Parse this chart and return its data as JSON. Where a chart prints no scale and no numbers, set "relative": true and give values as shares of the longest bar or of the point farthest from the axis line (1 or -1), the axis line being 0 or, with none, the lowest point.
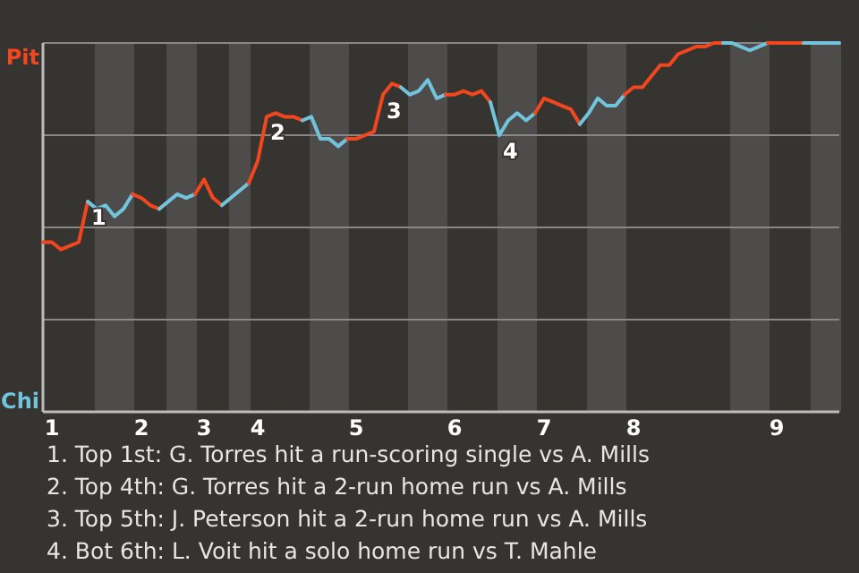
{
  "chart_data": {
    "type": "line",
    "relative": true,
    "categories": [
      null,
      "1",
      null,
      null,
      null,
      null,
      null,
      null,
      null,
      null,
      null,
      "2",
      null,
      null,
      null,
      null,
      null,
      null,
      "3",
      null,
      null,
      null,
      null,
      null,
      "4",
      null,
      null,
      null,
      null,
      null,
      null,
      null,
      null,
      null,
      null,
      "5",
      null,
      null,
      null,
      null,
      null,
      null,
      null,
      null,
      null,
      null,
      "6",
      null,
      null,
      null,
      null,
      null,
      null,
      null,
      null,
      null,
      "7",
      null,
      null,
      null,
      null,
      null,
      null,
      null,
      null,
      null,
      "8",
      null,
      null,
      null,
      null,
      null,
      null,
      null,
      null,
      null,
      null,
      null,
      null,
      null,
      null,
      null,
      "9",
      null,
      null,
      null,
      null,
      null,
      null,
      null
    ],
    "marker": "none",
    "series": [
      {
        "name": "1",
        "color": "#f2461e",
        "values": [
          0.46,
          0.46,
          0.44,
          0.45,
          0.46,
          0.57,
          null,
          null,
          null,
          null,
          null,
          null,
          null,
          null,
          null,
          null,
          null,
          null,
          null,
          null,
          null,
          null,
          null,
          null,
          null,
          null,
          null,
          null,
          null,
          null,
          null,
          null,
          null,
          null,
          null,
          null,
          null,
          null,
          null,
          null,
          null,
          null,
          null,
          null,
          null,
          null,
          null,
          null,
          null,
          null,
          null,
          null,
          null,
          null,
          null,
          null,
          null,
          null,
          null,
          null,
          null,
          null,
          null,
          null,
          null,
          null,
          null,
          null,
          null,
          null,
          null,
          null,
          null,
          null,
          null,
          null,
          null,
          null,
          null,
          null,
          null,
          null,
          null,
          null,
          null,
          null,
          null,
          null,
          null,
          null
        ]
      },
      {
        "color": "#72c4dd",
        "values": [
          null,
          null,
          null,
          null,
          null,
          0.57,
          0.55,
          0.56,
          0.53,
          0.55,
          0.59,
          null,
          null,
          null,
          null,
          null,
          null,
          null,
          null,
          null,
          null,
          null,
          null,
          null,
          null,
          null,
          null,
          null,
          null,
          null,
          null,
          null,
          null,
          null,
          null,
          null,
          null,
          null,
          null,
          null,
          null,
          null,
          null,
          null,
          null,
          null,
          null,
          null,
          null,
          null,
          null,
          null,
          null,
          null,
          null,
          null,
          null,
          null,
          null,
          null,
          null,
          null,
          null,
          null,
          null,
          null,
          null,
          null,
          null,
          null,
          null,
          null,
          null,
          null,
          null,
          null,
          null,
          null,
          null,
          null,
          null,
          null,
          null,
          null,
          null,
          null,
          null,
          null,
          null,
          null
        ]
      },
      {
        "color": "#f2461e",
        "values": [
          null,
          null,
          null,
          null,
          null,
          null,
          null,
          null,
          null,
          null,
          0.59,
          0.58,
          0.56,
          0.55,
          null,
          null,
          null,
          null,
          null,
          null,
          null,
          null,
          null,
          null,
          null,
          null,
          null,
          null,
          null,
          null,
          null,
          null,
          null,
          null,
          null,
          null,
          null,
          null,
          null,
          null,
          null,
          null,
          null,
          null,
          null,
          null,
          null,
          null,
          null,
          null,
          null,
          null,
          null,
          null,
          null,
          null,
          null,
          null,
          null,
          null,
          null,
          null,
          null,
          null,
          null,
          null,
          null,
          null,
          null,
          null,
          null,
          null,
          null,
          null,
          null,
          null,
          null,
          null,
          null,
          null,
          null,
          null,
          null,
          null,
          null,
          null,
          null,
          null,
          null,
          null
        ]
      },
      {
        "color": "#72c4dd",
        "values": [
          null,
          null,
          null,
          null,
          null,
          null,
          null,
          null,
          null,
          null,
          null,
          null,
          null,
          0.55,
          0.57,
          0.59,
          0.58,
          0.59,
          null,
          null,
          null,
          null,
          null,
          null,
          null,
          null,
          null,
          null,
          null,
          null,
          null,
          null,
          null,
          null,
          null,
          null,
          null,
          null,
          null,
          null,
          null,
          null,
          null,
          null,
          null,
          null,
          null,
          null,
          null,
          null,
          null,
          null,
          null,
          null,
          null,
          null,
          null,
          null,
          null,
          null,
          null,
          null,
          null,
          null,
          null,
          null,
          null,
          null,
          null,
          null,
          null,
          null,
          null,
          null,
          null,
          null,
          null,
          null,
          null,
          null,
          null,
          null,
          null,
          null,
          null,
          null,
          null,
          null,
          null,
          null
        ]
      },
      {
        "color": "#f2461e",
        "values": [
          null,
          null,
          null,
          null,
          null,
          null,
          null,
          null,
          null,
          null,
          null,
          null,
          null,
          null,
          null,
          null,
          null,
          0.59,
          0.63,
          0.58,
          0.56,
          null,
          null,
          null,
          null,
          null,
          null,
          null,
          null,
          null,
          null,
          null,
          null,
          null,
          null,
          null,
          null,
          null,
          null,
          null,
          null,
          null,
          null,
          null,
          null,
          null,
          null,
          null,
          null,
          null,
          null,
          null,
          null,
          null,
          null,
          null,
          null,
          null,
          null,
          null,
          null,
          null,
          null,
          null,
          null,
          null,
          null,
          null,
          null,
          null,
          null,
          null,
          null,
          null,
          null,
          null,
          null,
          null,
          null,
          null,
          null,
          null,
          null,
          null,
          null,
          null,
          null,
          null,
          null,
          null
        ]
      },
      {
        "color": "#72c4dd",
        "values": [
          null,
          null,
          null,
          null,
          null,
          null,
          null,
          null,
          null,
          null,
          null,
          null,
          null,
          null,
          null,
          null,
          null,
          null,
          null,
          null,
          0.56,
          0.58,
          0.6,
          0.62,
          null,
          null,
          null,
          null,
          null,
          null,
          null,
          null,
          null,
          null,
          null,
          null,
          null,
          null,
          null,
          null,
          null,
          null,
          null,
          null,
          null,
          null,
          null,
          null,
          null,
          null,
          null,
          null,
          null,
          null,
          null,
          null,
          null,
          null,
          null,
          null,
          null,
          null,
          null,
          null,
          null,
          null,
          null,
          null,
          null,
          null,
          null,
          null,
          null,
          null,
          null,
          null,
          null,
          null,
          null,
          null,
          null,
          null,
          null,
          null,
          null,
          null,
          null,
          null,
          null,
          null
        ]
      },
      {
        "name": "2",
        "color": "#f2461e",
        "values": [
          null,
          null,
          null,
          null,
          null,
          null,
          null,
          null,
          null,
          null,
          null,
          null,
          null,
          null,
          null,
          null,
          null,
          null,
          null,
          null,
          null,
          null,
          null,
          0.62,
          0.68,
          0.8,
          0.81,
          0.8,
          0.8,
          0.79,
          null,
          null,
          null,
          null,
          null,
          null,
          null,
          null,
          null,
          null,
          null,
          null,
          null,
          null,
          null,
          null,
          null,
          null,
          null,
          null,
          null,
          null,
          null,
          null,
          null,
          null,
          null,
          null,
          null,
          null,
          null,
          null,
          null,
          null,
          null,
          null,
          null,
          null,
          null,
          null,
          null,
          null,
          null,
          null,
          null,
          null,
          null,
          null,
          null,
          null,
          null,
          null,
          null,
          null,
          null,
          null,
          null,
          null,
          null,
          null
        ]
      },
      {
        "color": "#72c4dd",
        "values": [
          null,
          null,
          null,
          null,
          null,
          null,
          null,
          null,
          null,
          null,
          null,
          null,
          null,
          null,
          null,
          null,
          null,
          null,
          null,
          null,
          null,
          null,
          null,
          null,
          null,
          null,
          null,
          null,
          null,
          0.79,
          0.8,
          0.74,
          0.74,
          0.72,
          0.74,
          null,
          null,
          null,
          null,
          null,
          null,
          null,
          null,
          null,
          null,
          null,
          null,
          null,
          null,
          null,
          null,
          null,
          null,
          null,
          null,
          null,
          null,
          null,
          null,
          null,
          null,
          null,
          null,
          null,
          null,
          null,
          null,
          null,
          null,
          null,
          null,
          null,
          null,
          null,
          null,
          null,
          null,
          null,
          null,
          null,
          null,
          null,
          null,
          null,
          null,
          null,
          null,
          null,
          null,
          null
        ]
      },
      {
        "name": "3",
        "color": "#f2461e",
        "values": [
          null,
          null,
          null,
          null,
          null,
          null,
          null,
          null,
          null,
          null,
          null,
          null,
          null,
          null,
          null,
          null,
          null,
          null,
          null,
          null,
          null,
          null,
          null,
          null,
          null,
          null,
          null,
          null,
          null,
          null,
          null,
          null,
          null,
          null,
          0.74,
          0.74,
          0.75,
          0.76,
          0.86,
          0.89,
          0.88,
          null,
          null,
          null,
          null,
          null,
          null,
          null,
          null,
          null,
          null,
          null,
          null,
          null,
          null,
          null,
          null,
          null,
          null,
          null,
          null,
          null,
          null,
          null,
          null,
          null,
          null,
          null,
          null,
          null,
          null,
          null,
          null,
          null,
          null,
          null,
          null,
          null,
          null,
          null,
          null,
          null,
          null,
          null,
          null,
          null,
          null,
          null,
          null,
          null
        ]
      },
      {
        "color": "#72c4dd",
        "values": [
          null,
          null,
          null,
          null,
          null,
          null,
          null,
          null,
          null,
          null,
          null,
          null,
          null,
          null,
          null,
          null,
          null,
          null,
          null,
          null,
          null,
          null,
          null,
          null,
          null,
          null,
          null,
          null,
          null,
          null,
          null,
          null,
          null,
          null,
          null,
          null,
          null,
          null,
          null,
          null,
          0.88,
          0.86,
          0.87,
          0.9,
          0.85,
          0.86,
          null,
          null,
          null,
          null,
          null,
          null,
          null,
          null,
          null,
          null,
          null,
          null,
          null,
          null,
          null,
          null,
          null,
          null,
          null,
          null,
          null,
          null,
          null,
          null,
          null,
          null,
          null,
          null,
          null,
          null,
          null,
          null,
          null,
          null,
          null,
          null,
          null,
          null,
          null,
          null,
          null,
          null,
          null,
          null
        ]
      },
      {
        "color": "#f2461e",
        "values": [
          null,
          null,
          null,
          null,
          null,
          null,
          null,
          null,
          null,
          null,
          null,
          null,
          null,
          null,
          null,
          null,
          null,
          null,
          null,
          null,
          null,
          null,
          null,
          null,
          null,
          null,
          null,
          null,
          null,
          null,
          null,
          null,
          null,
          null,
          null,
          null,
          null,
          null,
          null,
          null,
          null,
          null,
          null,
          null,
          null,
          0.86,
          0.86,
          0.87,
          0.86,
          0.87,
          0.84,
          null,
          null,
          null,
          null,
          null,
          null,
          null,
          null,
          null,
          null,
          null,
          null,
          null,
          null,
          null,
          null,
          null,
          null,
          null,
          null,
          null,
          null,
          null,
          null,
          null,
          null,
          null,
          null,
          null,
          null,
          null,
          null,
          null,
          null,
          null,
          null,
          null,
          null,
          null
        ]
      },
      {
        "name": "4",
        "color": "#72c4dd",
        "values": [
          null,
          null,
          null,
          null,
          null,
          null,
          null,
          null,
          null,
          null,
          null,
          null,
          null,
          null,
          null,
          null,
          null,
          null,
          null,
          null,
          null,
          null,
          null,
          null,
          null,
          null,
          null,
          null,
          null,
          null,
          null,
          null,
          null,
          null,
          null,
          null,
          null,
          null,
          null,
          null,
          null,
          null,
          null,
          null,
          null,
          null,
          null,
          null,
          null,
          null,
          0.84,
          0.75,
          0.79,
          0.81,
          0.79,
          0.81,
          null,
          null,
          null,
          null,
          null,
          null,
          null,
          null,
          null,
          null,
          null,
          null,
          null,
          null,
          null,
          null,
          null,
          null,
          null,
          null,
          null,
          null,
          null,
          null,
          null,
          null,
          null,
          null,
          null,
          null,
          null,
          null,
          null,
          null
        ]
      },
      {
        "color": "#f2461e",
        "values": [
          null,
          null,
          null,
          null,
          null,
          null,
          null,
          null,
          null,
          null,
          null,
          null,
          null,
          null,
          null,
          null,
          null,
          null,
          null,
          null,
          null,
          null,
          null,
          null,
          null,
          null,
          null,
          null,
          null,
          null,
          null,
          null,
          null,
          null,
          null,
          null,
          null,
          null,
          null,
          null,
          null,
          null,
          null,
          null,
          null,
          null,
          null,
          null,
          null,
          null,
          null,
          null,
          null,
          null,
          null,
          0.81,
          0.85,
          0.84,
          0.83,
          0.82,
          0.78,
          null,
          null,
          null,
          null,
          null,
          null,
          null,
          null,
          null,
          null,
          null,
          null,
          null,
          null,
          null,
          null,
          null,
          null,
          null,
          null,
          null,
          null,
          null,
          null,
          null,
          null,
          null,
          null,
          null
        ]
      },
      {
        "color": "#72c4dd",
        "values": [
          null,
          null,
          null,
          null,
          null,
          null,
          null,
          null,
          null,
          null,
          null,
          null,
          null,
          null,
          null,
          null,
          null,
          null,
          null,
          null,
          null,
          null,
          null,
          null,
          null,
          null,
          null,
          null,
          null,
          null,
          null,
          null,
          null,
          null,
          null,
          null,
          null,
          null,
          null,
          null,
          null,
          null,
          null,
          null,
          null,
          null,
          null,
          null,
          null,
          null,
          null,
          null,
          null,
          null,
          null,
          null,
          null,
          null,
          null,
          null,
          0.78,
          0.81,
          0.85,
          0.83,
          0.83,
          0.86,
          null,
          null,
          null,
          null,
          null,
          null,
          null,
          null,
          null,
          null,
          null,
          null,
          null,
          null,
          null,
          null,
          null,
          null,
          null,
          null,
          null,
          null,
          null,
          null
        ]
      },
      {
        "color": "#f2461e",
        "values": [
          null,
          null,
          null,
          null,
          null,
          null,
          null,
          null,
          null,
          null,
          null,
          null,
          null,
          null,
          null,
          null,
          null,
          null,
          null,
          null,
          null,
          null,
          null,
          null,
          null,
          null,
          null,
          null,
          null,
          null,
          null,
          null,
          null,
          null,
          null,
          null,
          null,
          null,
          null,
          null,
          null,
          null,
          null,
          null,
          null,
          null,
          null,
          null,
          null,
          null,
          null,
          null,
          null,
          null,
          null,
          null,
          null,
          null,
          null,
          null,
          null,
          null,
          null,
          null,
          null,
          0.86,
          0.88,
          0.88,
          0.91,
          0.94,
          0.94,
          0.97,
          0.98,
          0.99,
          0.99,
          1,
          1,
          null,
          null,
          null,
          null,
          null,
          null,
          null,
          null,
          null,
          null,
          null,
          null,
          null
        ]
      },
      {
        "color": "#72c4dd",
        "values": [
          null,
          null,
          null,
          null,
          null,
          null,
          null,
          null,
          null,
          null,
          null,
          null,
          null,
          null,
          null,
          null,
          null,
          null,
          null,
          null,
          null,
          null,
          null,
          null,
          null,
          null,
          null,
          null,
          null,
          null,
          null,
          null,
          null,
          null,
          null,
          null,
          null,
          null,
          null,
          null,
          null,
          null,
          null,
          null,
          null,
          null,
          null,
          null,
          null,
          null,
          null,
          null,
          null,
          null,
          null,
          null,
          null,
          null,
          null,
          null,
          null,
          null,
          null,
          null,
          null,
          null,
          null,
          null,
          null,
          null,
          null,
          null,
          null,
          null,
          null,
          null,
          1,
          1,
          0.99,
          0.98,
          0.99,
          1,
          null,
          null,
          null,
          null,
          null,
          null,
          null,
          null
        ]
      },
      {
        "color": "#f2461e",
        "values": [
          null,
          null,
          null,
          null,
          null,
          null,
          null,
          null,
          null,
          null,
          null,
          null,
          null,
          null,
          null,
          null,
          null,
          null,
          null,
          null,
          null,
          null,
          null,
          null,
          null,
          null,
          null,
          null,
          null,
          null,
          null,
          null,
          null,
          null,
          null,
          null,
          null,
          null,
          null,
          null,
          null,
          null,
          null,
          null,
          null,
          null,
          null,
          null,
          null,
          null,
          null,
          null,
          null,
          null,
          null,
          null,
          null,
          null,
          null,
          null,
          null,
          null,
          null,
          null,
          null,
          null,
          null,
          null,
          null,
          null,
          null,
          null,
          null,
          null,
          null,
          null,
          null,
          null,
          null,
          null,
          null,
          1,
          1,
          1,
          1,
          1,
          null,
          null,
          null,
          null
        ]
      },
      {
        "color": "#72c4dd",
        "values": [
          null,
          null,
          null,
          null,
          null,
          null,
          null,
          null,
          null,
          null,
          null,
          null,
          null,
          null,
          null,
          null,
          null,
          null,
          null,
          null,
          null,
          null,
          null,
          null,
          null,
          null,
          null,
          null,
          null,
          null,
          null,
          null,
          null,
          null,
          null,
          null,
          null,
          null,
          null,
          null,
          null,
          null,
          null,
          null,
          null,
          null,
          null,
          null,
          null,
          null,
          null,
          null,
          null,
          null,
          null,
          null,
          null,
          null,
          null,
          null,
          null,
          null,
          null,
          null,
          null,
          null,
          null,
          null,
          null,
          null,
          null,
          null,
          null,
          null,
          null,
          null,
          null,
          null,
          null,
          null,
          null,
          null,
          null,
          null,
          null,
          1,
          1,
          1,
          1,
          1
        ]
      }
    ],
    "ref_lines": [
      {
        "axis": "y",
        "value": 0.25,
        "color": "#8a8886"
      },
      {
        "axis": "y",
        "value": 0.5,
        "color": "#8a8886"
      },
      {
        "axis": "y",
        "value": 0.75,
        "color": "#8a8886"
      },
      {
        "axis": "y",
        "value": 1,
        "color": "#8a8886"
      }
    ],
    "annotations": [
      "Pit",
      "Chi",
      "1. Top 1st: G. Torres hit a run-scoring single vs A. Mills",
      "2. Top 4th: G. Torres hit a 2-run home run vs A. Mills",
      "3. Top 5th: J. Peterson hit a 2-run home run vs A. Mills",
      "4. Bot 6th: L. Voit hit a solo home run vs T. Mahle"
    ]
  }
}
